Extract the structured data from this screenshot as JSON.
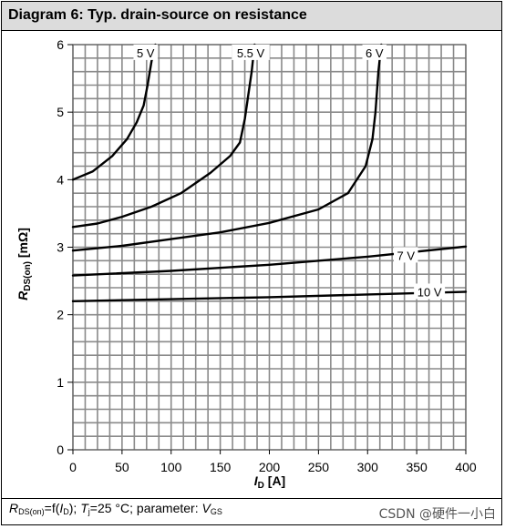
{
  "header": {
    "title": "Diagram 6: Typ. drain-source on resistance"
  },
  "footer": {
    "r_main": "R",
    "r_sub": "DS(on)",
    "eq": "=f(",
    "i_main": "I",
    "i_sub": "D",
    "mid": "); ",
    "t_main": "T",
    "t_sub": "j",
    "temp": "=25 °C; parameter: ",
    "v_main": "V",
    "v_sub": "GS"
  },
  "watermark": "CSDN @硬件一小白",
  "chart_data": {
    "type": "line",
    "title": "Diagram 6: Typ. drain-source on resistance",
    "xlabel": {
      "main": "I",
      "sub": "D",
      "unit": " [A]"
    },
    "ylabel": {
      "main": "R",
      "sub": "DS(on)",
      "unit": "  [mΩ]"
    },
    "xlim": [
      0,
      400
    ],
    "ylim": [
      0,
      6
    ],
    "xticks": [
      "0",
      "50",
      "100",
      "150",
      "200",
      "250",
      "300",
      "350",
      "400"
    ],
    "yticks": [
      "0",
      "1",
      "2",
      "3",
      "4",
      "5",
      "6"
    ],
    "x_grid_step": 12.5,
    "y_grid_step": 0.2,
    "grid": true,
    "series": [
      {
        "name": "5 V",
        "x": [
          0,
          20,
          40,
          55,
          65,
          72,
          76,
          80,
          84
        ],
        "y": [
          4.0,
          4.12,
          4.35,
          4.6,
          4.85,
          5.1,
          5.4,
          5.75,
          6.0
        ]
      },
      {
        "name": "5.5 V",
        "x": [
          0,
          25,
          50,
          80,
          110,
          140,
          160,
          170,
          175,
          178,
          182,
          185
        ],
        "y": [
          3.3,
          3.35,
          3.45,
          3.6,
          3.8,
          4.1,
          4.35,
          4.55,
          4.9,
          5.2,
          5.6,
          6.0
        ]
      },
      {
        "name": "6 V",
        "x": [
          0,
          50,
          100,
          150,
          200,
          250,
          280,
          298,
          305,
          308,
          311,
          314
        ],
        "y": [
          2.95,
          3.02,
          3.12,
          3.22,
          3.36,
          3.56,
          3.8,
          4.2,
          4.6,
          5.0,
          5.6,
          6.0
        ]
      },
      {
        "name": "7 V",
        "x": [
          0,
          100,
          200,
          300,
          400
        ],
        "y": [
          2.58,
          2.65,
          2.74,
          2.86,
          3.01
        ]
      },
      {
        "name": "10 V",
        "x": [
          0,
          100,
          200,
          300,
          400
        ],
        "y": [
          2.2,
          2.23,
          2.26,
          2.3,
          2.34
        ]
      }
    ],
    "curve_labels": [
      {
        "text": "5 V",
        "x": 74,
        "y": 5.88
      },
      {
        "text": "5.5 V",
        "x": 181,
        "y": 5.88
      },
      {
        "text": "6 V",
        "x": 307,
        "y": 5.88
      },
      {
        "text": "7 V",
        "x": 339,
        "y": 2.88
      },
      {
        "text": "10 V",
        "x": 363,
        "y": 2.34
      }
    ]
  }
}
